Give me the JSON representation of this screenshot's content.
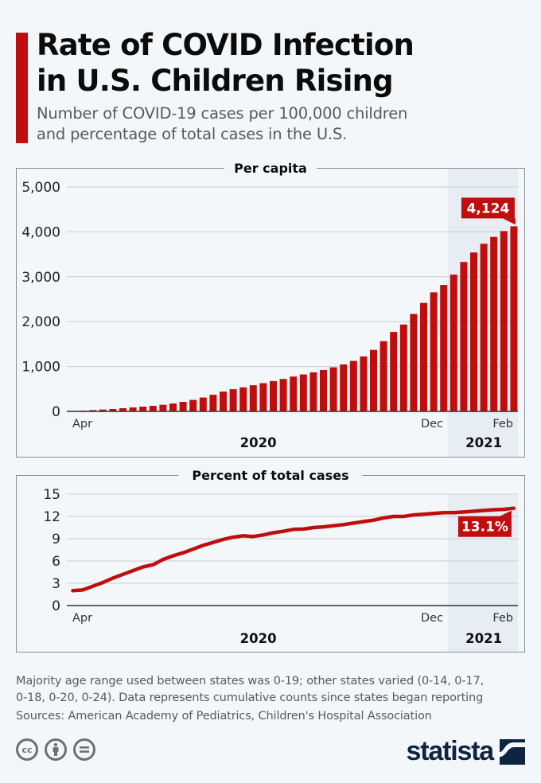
{
  "header": {
    "title_lines": [
      "Rate of COVID Infection",
      "in U.S. Children Rising"
    ],
    "subtitle_lines": [
      "Number of COVID-19 cases per 100,000 children",
      "and percentage of total cases in the U.S."
    ]
  },
  "colors": {
    "accent": "#c00d0d",
    "background": "#f4f7fa",
    "shade": "#e8edf3",
    "grid": "#c9ccd0",
    "axis": "#333333",
    "text_dark": "#0b0b0b",
    "text_muted": "#555a60",
    "logo": "#0e2440"
  },
  "chart_data": [
    {
      "type": "bar",
      "title": "Per capita",
      "xlabel": "",
      "ylabel": "",
      "ylim": [
        0,
        5000
      ],
      "y_ticks": [
        0,
        1000,
        2000,
        3000,
        4000,
        5000
      ],
      "y_tick_labels": [
        "0",
        "1,000",
        "2,000",
        "3,000",
        "4,000",
        "5,000"
      ],
      "x_tick_labels": [
        {
          "index": 0,
          "label": "Apr"
        },
        {
          "index": 35,
          "label": "Dec"
        },
        {
          "index": 44,
          "label": "Feb"
        }
      ],
      "year_labels": [
        {
          "label": "2020",
          "from_index": 0,
          "to_index": 37
        },
        {
          "label": "2021",
          "from_index": 38,
          "to_index": 44
        }
      ],
      "highlight_from_index": 38,
      "grid": true,
      "series": [
        {
          "name": "Cases per 100,000 children",
          "values": [
            12,
            18,
            29,
            41,
            53,
            71,
            88,
            106,
            123,
            147,
            176,
            212,
            256,
            309,
            370,
            441,
            494,
            535,
            582,
            629,
            676,
            723,
            776,
            823,
            870,
            923,
            982,
            1046,
            1125,
            1224,
            1371,
            1565,
            1771,
            1935,
            2171,
            2418,
            2653,
            2818,
            3047,
            3329,
            3541,
            3735,
            3888,
            4018,
            4124
          ]
        }
      ],
      "annotation": {
        "index": 44,
        "label": "4,124"
      }
    },
    {
      "type": "line",
      "title": "Percent of total cases",
      "xlabel": "",
      "ylabel": "",
      "ylim": [
        0,
        15
      ],
      "y_ticks": [
        0,
        3,
        6,
        9,
        12,
        15
      ],
      "y_tick_labels": [
        "0",
        "3",
        "6",
        "9",
        "12",
        "15"
      ],
      "x_tick_labels": [
        {
          "index": 0,
          "label": "Apr"
        },
        {
          "index": 35,
          "label": "Dec"
        },
        {
          "index": 44,
          "label": "Feb"
        }
      ],
      "year_labels": [
        {
          "label": "2020",
          "from_index": 0,
          "to_index": 37
        },
        {
          "label": "2021",
          "from_index": 38,
          "to_index": 44
        }
      ],
      "highlight_from_index": 38,
      "grid": true,
      "series": [
        {
          "name": "Percent of total cases",
          "values": [
            2.0,
            2.1,
            2.6,
            3.1,
            3.7,
            4.2,
            4.7,
            5.2,
            5.5,
            6.2,
            6.7,
            7.1,
            7.6,
            8.1,
            8.5,
            8.9,
            9.2,
            9.4,
            9.3,
            9.5,
            9.8,
            10.0,
            10.25,
            10.3,
            10.5,
            10.6,
            10.75,
            10.9,
            11.1,
            11.3,
            11.5,
            11.8,
            12.0,
            12.0,
            12.2,
            12.3,
            12.4,
            12.5,
            12.5,
            12.6,
            12.7,
            12.8,
            12.9,
            12.95,
            13.1
          ]
        }
      ],
      "annotation": {
        "index": 44,
        "label": "13.1%"
      }
    }
  ],
  "footer": {
    "note_lines": [
      "Majority age range used between states was 0-19; other states varied (0-14, 0-17,",
      "0-18, 0-20, 0-24). Data represents cumulative counts since states began reporting"
    ],
    "sources": "Sources: American Academy of Pediatrics, Children's Hospital Association",
    "license_icons": [
      "creative-commons-icon",
      "attribution-icon",
      "no-derivatives-icon"
    ],
    "cc_label": "cc",
    "brand": "statista"
  }
}
